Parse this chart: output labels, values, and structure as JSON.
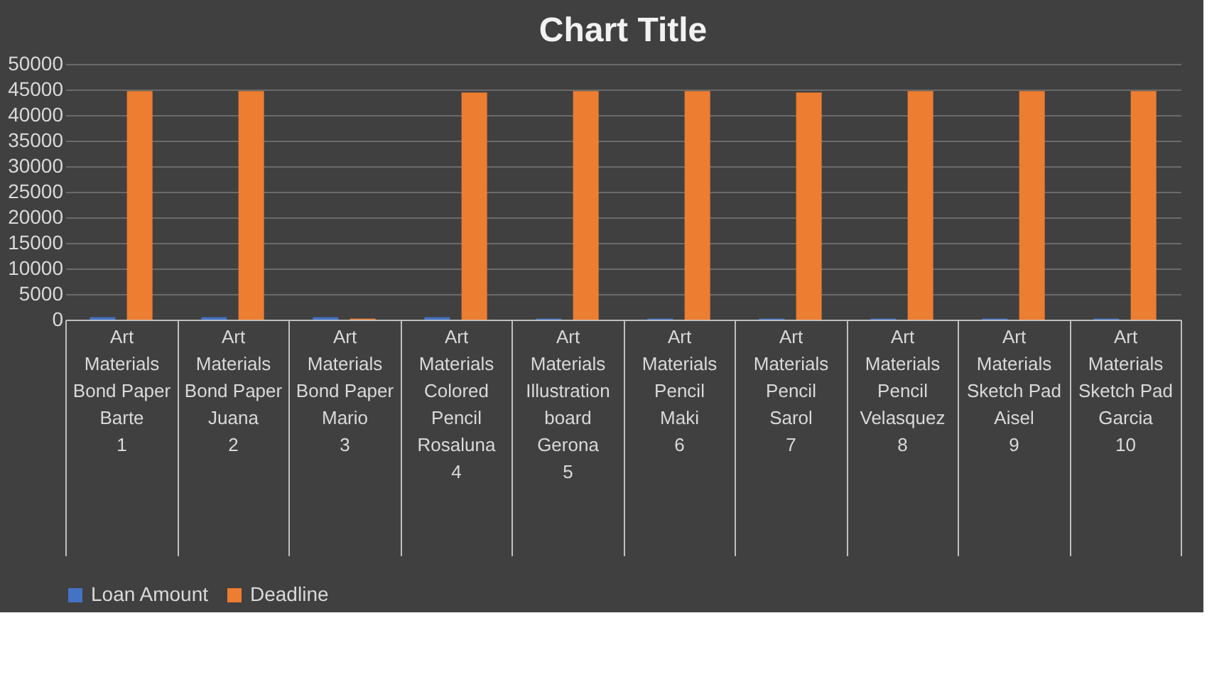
{
  "chart_data": {
    "type": "bar",
    "title": "Chart Title",
    "categories": [
      "Art Materials\nBond Paper\nBarte\n1",
      "Art Materials\nBond Paper\nJuana\n2",
      "Art Materials\nBond Paper\nMario\n3",
      "Art Materials\nColored Pencil\nRosaluna\n4",
      "Art Materials\nIllustration board\nGerona\n5",
      "Art Materials\nPencil\nMaki\n6",
      "Art Materials\nPencil\nSarol\n7",
      "Art Materials\nPencil\nVelasquez\n8",
      "Art Materials\nSketch Pad\nAisel\n9",
      "Art Materials\nSketch Pad\nGarcia\n10"
    ],
    "series": [
      {
        "name": "Loan Amount",
        "color": "#4472c4",
        "values": [
          500,
          500,
          500,
          500,
          200,
          200,
          200,
          200,
          200,
          200
        ]
      },
      {
        "name": "Deadline",
        "color": "#ed7d31",
        "values": [
          44700,
          44700,
          200,
          44400,
          44700,
          44700,
          44400,
          44700,
          44700,
          44700
        ]
      }
    ],
    "ylim": [
      0,
      50000
    ],
    "yticks": [
      0,
      5000,
      10000,
      15000,
      20000,
      25000,
      30000,
      35000,
      40000,
      45000,
      50000
    ],
    "grid": "y",
    "legend": "bottom"
  }
}
